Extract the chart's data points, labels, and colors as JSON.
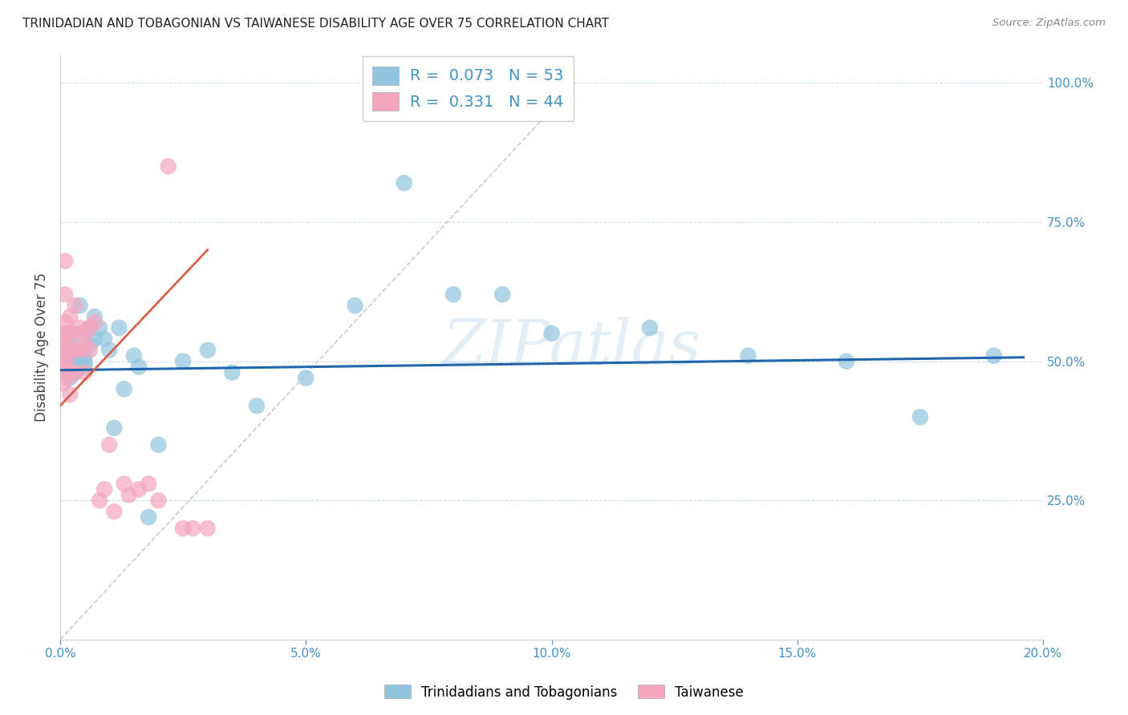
{
  "title": "TRINIDADIAN AND TOBAGONIAN VS TAIWANESE DISABILITY AGE OVER 75 CORRELATION CHART",
  "source": "Source: ZipAtlas.com",
  "ylabel": "Disability Age Over 75",
  "legend_label_1": "Trinidadians and Tobagonians",
  "legend_label_2": "Taiwanese",
  "R1": 0.073,
  "N1": 53,
  "R2": 0.331,
  "N2": 44,
  "color1": "#92c5de",
  "color2": "#f4a6be",
  "trendline1_color": "#2166ac",
  "trendline2_color": "#d6604d",
  "refline_color": "#cccccc",
  "axis_label_color": "#444444",
  "right_axis_color": "#4292c6",
  "watermark": "ZIPatlas",
  "xlim": [
    0.0,
    0.2
  ],
  "ylim": [
    0.0,
    1.05
  ],
  "xtick_positions": [
    0.0,
    0.05,
    0.1,
    0.15,
    0.2
  ],
  "xtick_labels": [
    "0.0%",
    "5.0%",
    "10.0%",
    "15.0%",
    "20.0%"
  ],
  "yticks_right": [
    0.25,
    0.5,
    0.75,
    1.0
  ],
  "ytick_labels_right": [
    "25.0%",
    "50.0%",
    "75.0%",
    "100.0%"
  ],
  "blue_x": [
    0.0008,
    0.0009,
    0.001,
    0.001,
    0.001,
    0.0012,
    0.0015,
    0.0015,
    0.002,
    0.002,
    0.002,
    0.002,
    0.002,
    0.0025,
    0.003,
    0.003,
    0.003,
    0.003,
    0.004,
    0.004,
    0.004,
    0.005,
    0.005,
    0.005,
    0.006,
    0.006,
    0.007,
    0.007,
    0.008,
    0.009,
    0.01,
    0.011,
    0.012,
    0.013,
    0.015,
    0.016,
    0.018,
    0.02,
    0.025,
    0.03,
    0.035,
    0.04,
    0.05,
    0.06,
    0.07,
    0.08,
    0.09,
    0.1,
    0.12,
    0.14,
    0.16,
    0.175,
    0.19
  ],
  "blue_y": [
    0.5,
    0.51,
    0.5,
    0.49,
    0.52,
    0.5,
    0.51,
    0.49,
    0.51,
    0.5,
    0.48,
    0.53,
    0.47,
    0.5,
    0.52,
    0.49,
    0.51,
    0.48,
    0.5,
    0.6,
    0.55,
    0.51,
    0.5,
    0.49,
    0.56,
    0.53,
    0.58,
    0.54,
    0.56,
    0.54,
    0.52,
    0.38,
    0.56,
    0.45,
    0.51,
    0.49,
    0.22,
    0.35,
    0.5,
    0.52,
    0.48,
    0.42,
    0.47,
    0.6,
    0.82,
    0.62,
    0.62,
    0.55,
    0.56,
    0.51,
    0.5,
    0.4,
    0.51
  ],
  "pink_x": [
    0.0003,
    0.0004,
    0.0005,
    0.0005,
    0.0006,
    0.0007,
    0.0008,
    0.001,
    0.001,
    0.001,
    0.001,
    0.0012,
    0.0015,
    0.0015,
    0.002,
    0.002,
    0.002,
    0.002,
    0.002,
    0.0025,
    0.003,
    0.003,
    0.003,
    0.004,
    0.004,
    0.005,
    0.005,
    0.005,
    0.006,
    0.006,
    0.007,
    0.008,
    0.009,
    0.01,
    0.011,
    0.013,
    0.014,
    0.016,
    0.018,
    0.02,
    0.022,
    0.025,
    0.027,
    0.03
  ],
  "pink_y": [
    0.5,
    0.52,
    0.5,
    0.46,
    0.55,
    0.52,
    0.49,
    0.68,
    0.62,
    0.57,
    0.54,
    0.5,
    0.55,
    0.47,
    0.58,
    0.55,
    0.52,
    0.48,
    0.44,
    0.55,
    0.6,
    0.52,
    0.48,
    0.56,
    0.52,
    0.55,
    0.53,
    0.48,
    0.56,
    0.52,
    0.57,
    0.25,
    0.27,
    0.35,
    0.23,
    0.28,
    0.26,
    0.27,
    0.28,
    0.25,
    0.85,
    0.2,
    0.2,
    0.2
  ],
  "trendline1_x": [
    0.0,
    0.196
  ],
  "trendline1_y": [
    0.484,
    0.507
  ],
  "trendline2_x": [
    0.0,
    0.03
  ],
  "trendline2_y": [
    0.42,
    0.7
  ],
  "refline_x": [
    0.0,
    0.105
  ],
  "refline_y": [
    0.0,
    1.0
  ]
}
